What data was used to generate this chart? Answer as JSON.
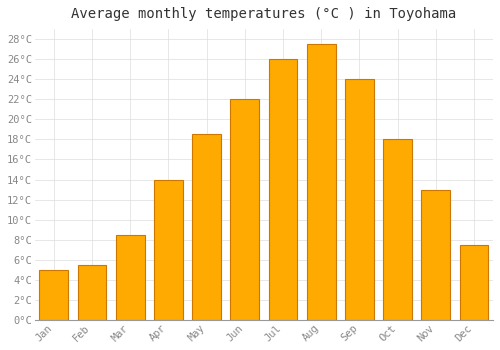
{
  "title": "Average monthly temperatures (°C ) in Toyohama",
  "months": [
    "Jan",
    "Feb",
    "Mar",
    "Apr",
    "May",
    "Jun",
    "Jul",
    "Aug",
    "Sep",
    "Oct",
    "Nov",
    "Dec"
  ],
  "values": [
    5.0,
    5.5,
    8.5,
    14.0,
    18.5,
    22.0,
    26.0,
    27.5,
    24.0,
    18.0,
    13.0,
    7.5
  ],
  "bar_color": "#FFAA00",
  "bar_edge_color": "#CC7700",
  "background_color": "#FFFFFF",
  "plot_bg_color": "#FFFFFF",
  "grid_color": "#DDDDDD",
  "ylim": [
    0,
    29
  ],
  "yticks": [
    0,
    2,
    4,
    6,
    8,
    10,
    12,
    14,
    16,
    18,
    20,
    22,
    24,
    26,
    28
  ],
  "title_fontsize": 10,
  "tick_fontsize": 7.5,
  "tick_color": "#888888",
  "label_font": "monospace",
  "bar_width": 0.75
}
